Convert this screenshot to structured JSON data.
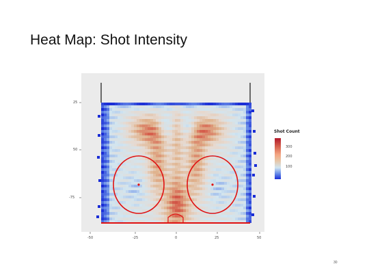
{
  "slide": {
    "title": "Heat Map: Shot Intensity",
    "page_number": "30"
  },
  "chart_data": {
    "type": "heatmap",
    "title": "",
    "xlabel": "",
    "ylabel": "",
    "x_ticks": [
      "-50",
      "-25",
      "0",
      "25",
      "50"
    ],
    "y_ticks": [
      "25",
      "50",
      "-75"
    ],
    "legend": {
      "title": "Shot Count",
      "position": "right",
      "labels": [
        "300",
        "200",
        "100"
      ]
    },
    "grid": false,
    "colors": {
      "low": "#1a2dd6",
      "mid": "#d1e5f0",
      "high": "#b2182b",
      "panel": "#ebebeb",
      "rink_lines": "#e01010"
    }
  }
}
